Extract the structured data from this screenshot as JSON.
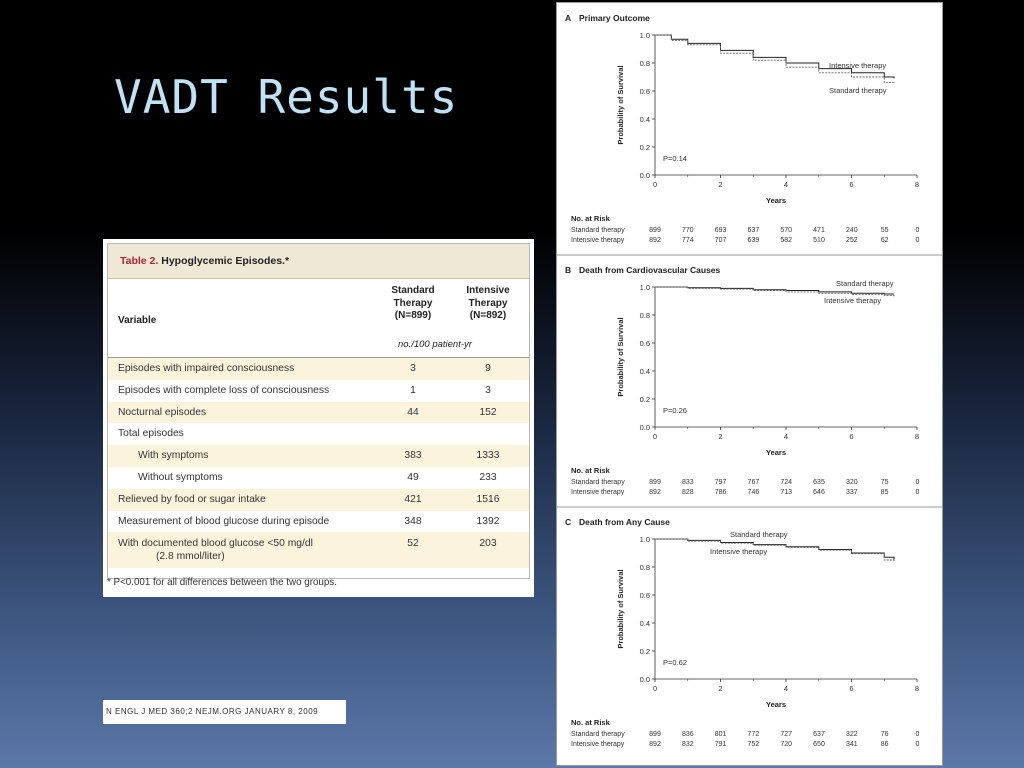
{
  "slide": {
    "title": "VADT Results"
  },
  "table": {
    "label": "Table 2.",
    "name": "Hypoglycemic Episodes.*",
    "variable_header": "Variable",
    "col1_header": [
      "Standard",
      "Therapy",
      "(N=899)"
    ],
    "col2_header": [
      "Intensive",
      "Therapy",
      "(N=892)"
    ],
    "units": "no./100 patient-yr",
    "rows": [
      {
        "variable": "Episodes with impaired consciousness",
        "standard": "3",
        "intensive": "9",
        "indent": false
      },
      {
        "variable": "Episodes with complete loss of consciousness",
        "standard": "1",
        "intensive": "3",
        "indent": false
      },
      {
        "variable": "Nocturnal episodes",
        "standard": "44",
        "intensive": "152",
        "indent": false
      },
      {
        "variable": "Total episodes",
        "standard": "",
        "intensive": "",
        "indent": false
      },
      {
        "variable": "With symptoms",
        "standard": "383",
        "intensive": "1333",
        "indent": true
      },
      {
        "variable": "Without symptoms",
        "standard": "49",
        "intensive": "233",
        "indent": true
      },
      {
        "variable": "Relieved by food or sugar intake",
        "standard": "421",
        "intensive": "1516",
        "indent": false
      },
      {
        "variable": "Measurement of blood glucose during episode",
        "standard": "348",
        "intensive": "1392",
        "indent": false
      },
      {
        "variable": "With documented blood glucose <50 mg/dl",
        "variable_line2": "(2.8 mmol/liter)",
        "standard": "52",
        "intensive": "203",
        "indent": false
      }
    ],
    "footnote": "* P<0.001 for all differences between the two groups."
  },
  "citation": "N ENGL J MED 360;2   NEJM.ORG   JANUARY 8, 2009",
  "colors": {
    "title": "#bfe3f5",
    "table_label": "#b0262c",
    "shade": "#fbf3dc"
  },
  "chart_data": [
    {
      "type": "line",
      "panel_letter": "A",
      "title": "Primary Outcome",
      "xlabel": "Years",
      "ylabel": "Probability of Survival",
      "xlim": [
        0,
        8
      ],
      "ylim": [
        0,
        1.0
      ],
      "xticks": [
        "0",
        "2",
        "4",
        "6",
        "8"
      ],
      "yticks": [
        "0.0",
        "0.2",
        "0.4",
        "0.6",
        "0.8",
        "1.0"
      ],
      "p_value": "P=0.14",
      "series": [
        {
          "name": "Intensive therapy",
          "x": [
            0,
            0.5,
            1,
            2,
            3,
            4,
            5,
            6,
            7,
            7.3
          ],
          "y": [
            1.0,
            0.97,
            0.94,
            0.89,
            0.84,
            0.8,
            0.76,
            0.73,
            0.7,
            0.69
          ]
        },
        {
          "name": "Standard therapy",
          "x": [
            0,
            0.5,
            1,
            2,
            3,
            4,
            5,
            6,
            7,
            7.3
          ],
          "y": [
            1.0,
            0.96,
            0.93,
            0.87,
            0.82,
            0.77,
            0.73,
            0.7,
            0.66,
            0.65
          ]
        }
      ],
      "risk_title": "No. at Risk",
      "risk_table": [
        {
          "label": "Standard therapy",
          "values": [
            "899",
            "770",
            "693",
            "637",
            "570",
            "471",
            "240",
            "55",
            "0"
          ]
        },
        {
          "label": "Intensive therapy",
          "values": [
            "892",
            "774",
            "707",
            "639",
            "582",
            "510",
            "252",
            "62",
            "0"
          ]
        }
      ]
    },
    {
      "type": "line",
      "panel_letter": "B",
      "title": "Death from Cardiovascular Causes",
      "xlabel": "Years",
      "ylabel": "Probability of Survival",
      "xlim": [
        0,
        8
      ],
      "ylim": [
        0,
        1.0
      ],
      "xticks": [
        "0",
        "2",
        "4",
        "6",
        "8"
      ],
      "yticks": [
        "0.0",
        "0.2",
        "0.4",
        "0.6",
        "0.8",
        "1.0"
      ],
      "p_value": "P=0.26",
      "series": [
        {
          "name": "Standard therapy",
          "x": [
            0,
            1,
            2,
            3,
            4,
            5,
            6,
            7,
            7.3
          ],
          "y": [
            1.0,
            0.995,
            0.99,
            0.98,
            0.975,
            0.965,
            0.955,
            0.95,
            0.95
          ]
        },
        {
          "name": "Intensive therapy",
          "x": [
            0,
            1,
            2,
            3,
            4,
            5,
            6,
            7,
            7.3
          ],
          "y": [
            1.0,
            0.99,
            0.985,
            0.975,
            0.965,
            0.955,
            0.945,
            0.94,
            0.93
          ]
        }
      ],
      "risk_title": "No. at Risk",
      "risk_table": [
        {
          "label": "Standard therapy",
          "values": [
            "899",
            "833",
            "797",
            "767",
            "724",
            "635",
            "320",
            "75",
            "0"
          ]
        },
        {
          "label": "Intensive therapy",
          "values": [
            "892",
            "828",
            "786",
            "746",
            "713",
            "646",
            "337",
            "85",
            "0"
          ]
        }
      ]
    },
    {
      "type": "line",
      "panel_letter": "C",
      "title": "Death from Any Cause",
      "xlabel": "Years",
      "ylabel": "Probability of Survival",
      "xlim": [
        0,
        8
      ],
      "ylim": [
        0,
        1.0
      ],
      "xticks": [
        "0",
        "2",
        "4",
        "6",
        "8"
      ],
      "yticks": [
        "0.0",
        "0.2",
        "0.4",
        "0.6",
        "0.8",
        "1.0"
      ],
      "p_value": "P=0.62",
      "series": [
        {
          "name": "Standard therapy",
          "x": [
            0,
            1,
            2,
            3,
            4,
            5,
            6,
            7,
            7.3
          ],
          "y": [
            1.0,
            0.99,
            0.975,
            0.96,
            0.945,
            0.925,
            0.9,
            0.87,
            0.85
          ]
        },
        {
          "name": "Intensive therapy",
          "x": [
            0,
            1,
            2,
            3,
            4,
            5,
            6,
            7,
            7.3
          ],
          "y": [
            1.0,
            0.985,
            0.97,
            0.955,
            0.94,
            0.92,
            0.895,
            0.85,
            0.84
          ]
        }
      ],
      "risk_title": "No. at Risk",
      "risk_table": [
        {
          "label": "Standard therapy",
          "values": [
            "899",
            "836",
            "801",
            "772",
            "727",
            "637",
            "322",
            "76",
            "0"
          ]
        },
        {
          "label": "Intensive therapy",
          "values": [
            "892",
            "832",
            "791",
            "752",
            "720",
            "650",
            "341",
            "86",
            "0"
          ]
        }
      ]
    }
  ]
}
